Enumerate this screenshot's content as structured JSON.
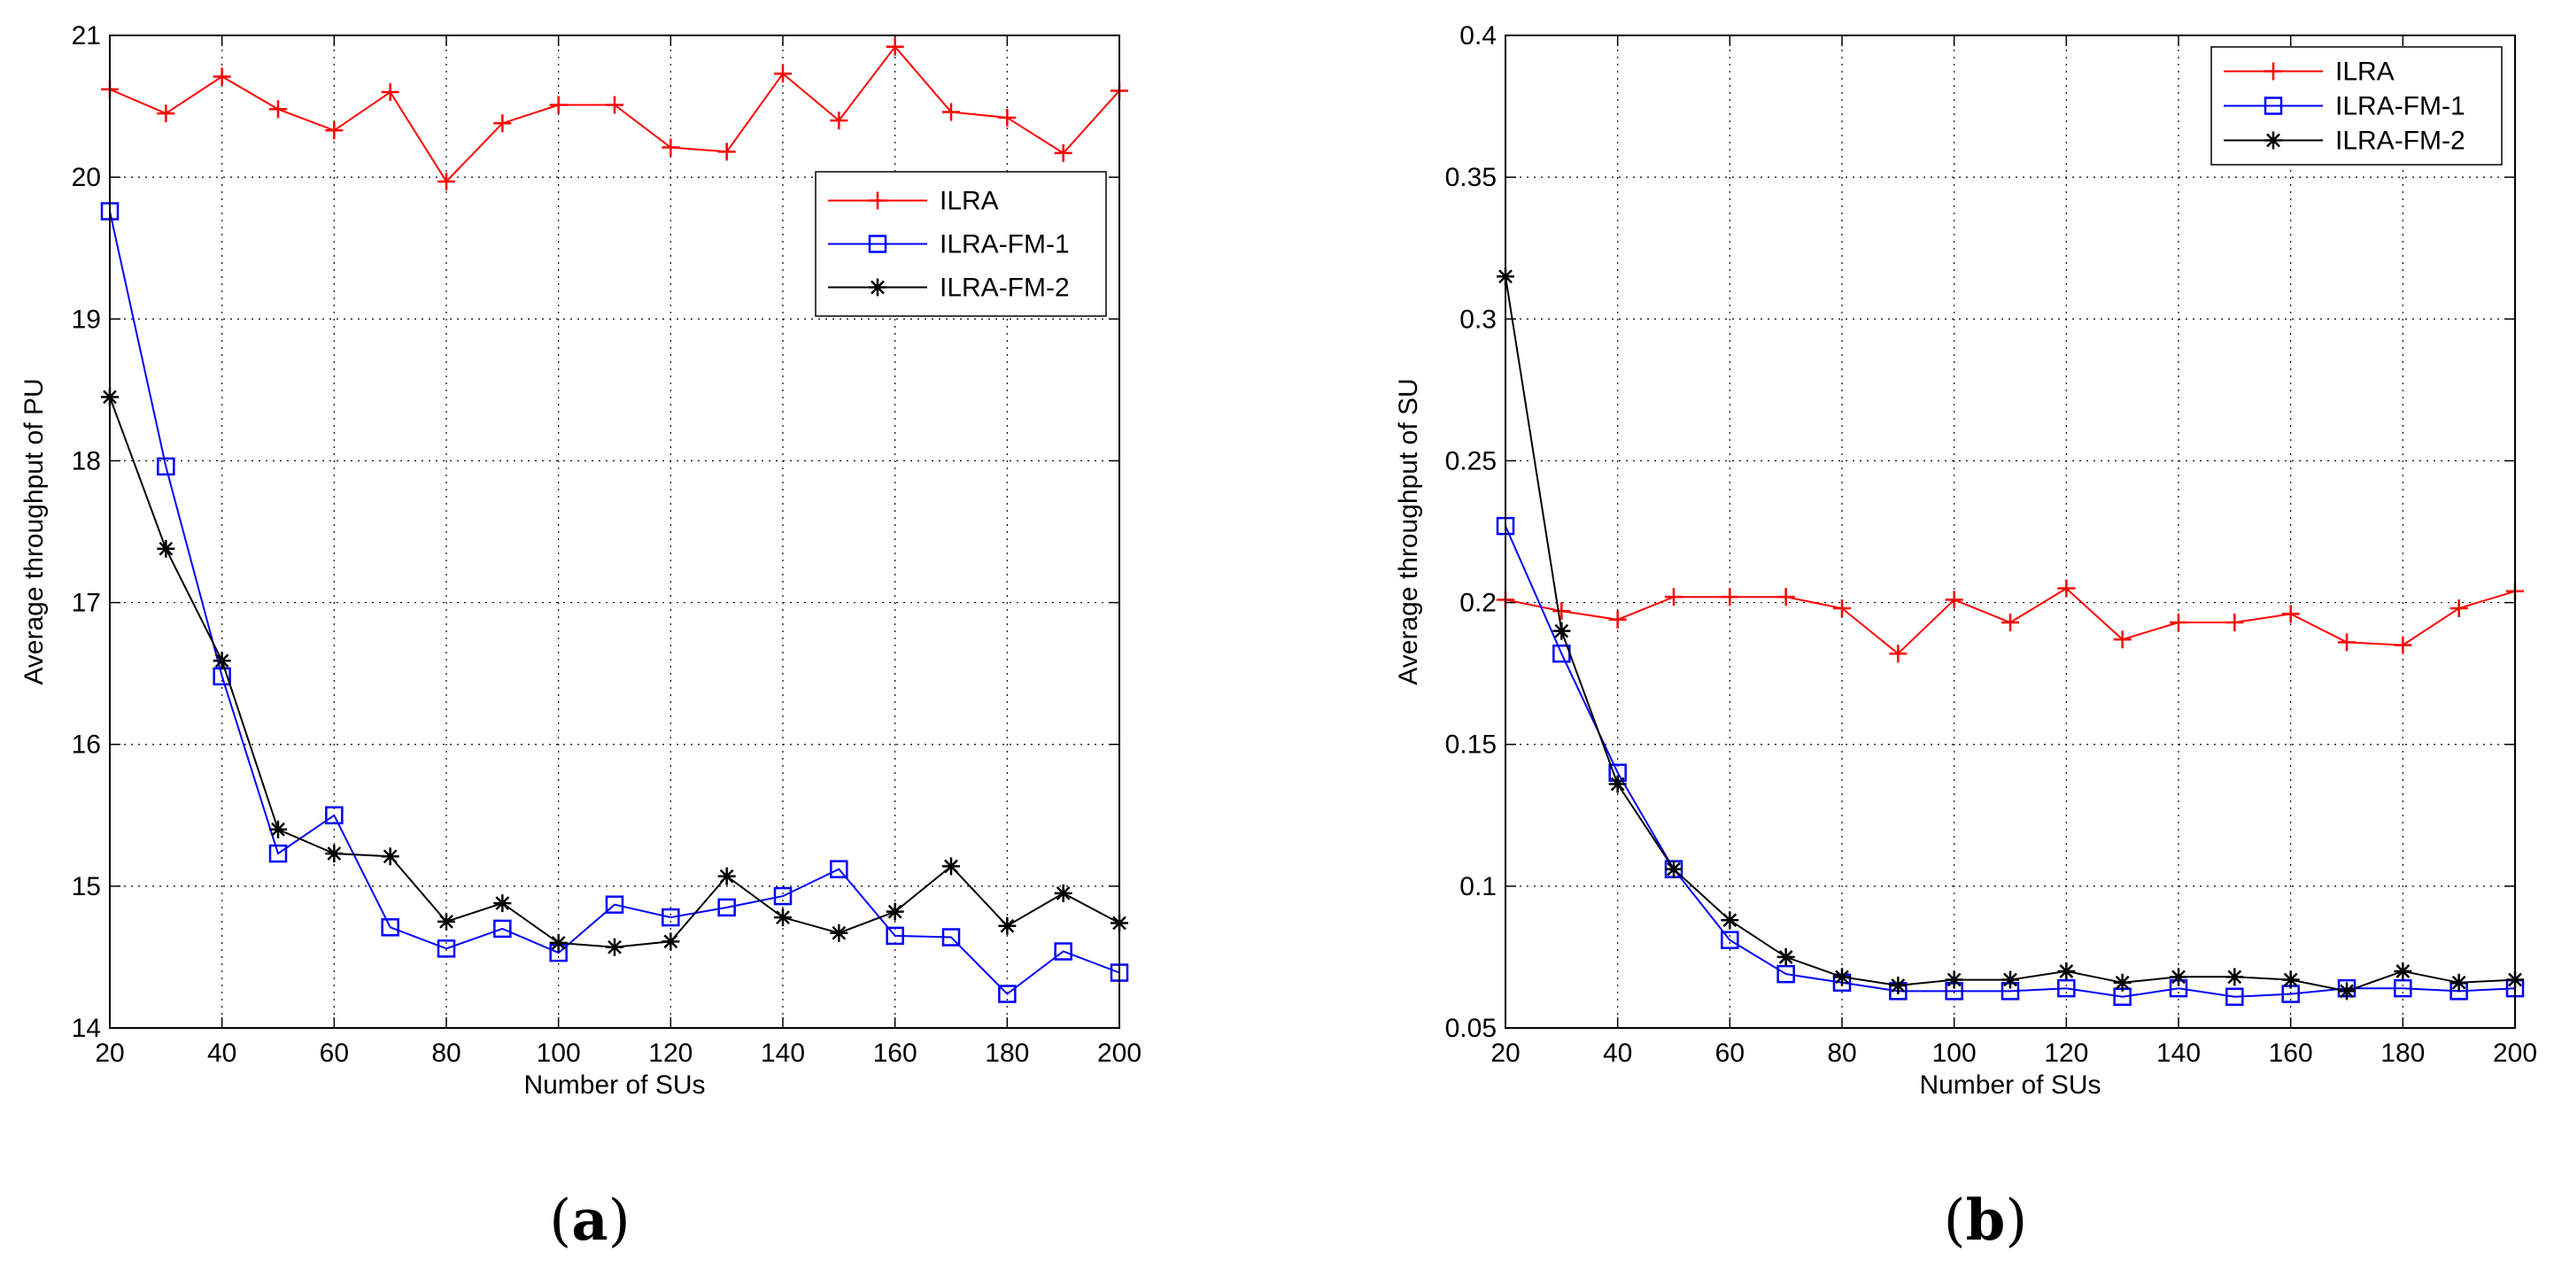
{
  "figure": {
    "panels": [
      {
        "label_open": "(",
        "label_letter": "a",
        "label_close": ")"
      },
      {
        "label_open": "(",
        "label_letter": "b",
        "label_close": ")"
      }
    ]
  },
  "chart_data": [
    {
      "type": "line",
      "title": "",
      "xlabel": "Number of SUs",
      "ylabel": "Average throughput of PU",
      "xlim": [
        20,
        200
      ],
      "ylim": [
        14,
        21
      ],
      "xticks": [
        20,
        40,
        60,
        80,
        100,
        120,
        140,
        160,
        180,
        200
      ],
      "yticks": [
        14,
        15,
        16,
        17,
        18,
        19,
        20,
        21
      ],
      "xtick_labels": [
        "20",
        "40",
        "60",
        "80",
        "100",
        "120",
        "140",
        "160",
        "180",
        "200"
      ],
      "ytick_labels": [
        "14",
        "15",
        "16",
        "17",
        "18",
        "19",
        "20",
        "21"
      ],
      "grid": true,
      "legend_position": "upper-right",
      "x": [
        20,
        30,
        40,
        50,
        60,
        70,
        80,
        90,
        100,
        110,
        120,
        130,
        140,
        150,
        160,
        170,
        180,
        190,
        200
      ],
      "series": [
        {
          "name": "ILRA",
          "color": "#ff0000",
          "marker": "plus",
          "values": [
            20.62,
            20.45,
            20.71,
            20.48,
            20.33,
            20.6,
            19.97,
            20.38,
            20.51,
            20.51,
            20.21,
            20.18,
            20.73,
            20.4,
            20.92,
            20.46,
            20.42,
            20.17,
            20.61
          ]
        },
        {
          "name": "ILRA-FM-1",
          "color": "#0000ff",
          "marker": "square",
          "values": [
            19.76,
            17.96,
            16.48,
            15.23,
            15.5,
            14.71,
            14.56,
            14.7,
            14.53,
            14.87,
            14.78,
            14.85,
            14.93,
            15.12,
            14.65,
            14.64,
            14.24,
            14.54,
            14.39
          ]
        },
        {
          "name": "ILRA-FM-2",
          "color": "#000000",
          "marker": "star",
          "values": [
            18.45,
            17.38,
            16.59,
            15.4,
            15.23,
            15.21,
            14.75,
            14.88,
            14.6,
            14.57,
            14.61,
            15.07,
            14.78,
            14.67,
            14.82,
            15.14,
            14.72,
            14.95,
            14.74
          ]
        }
      ]
    },
    {
      "type": "line",
      "title": "",
      "xlabel": "Number of SUs",
      "ylabel": "Average throughput of SU",
      "xlim": [
        20,
        200
      ],
      "ylim": [
        0.05,
        0.4
      ],
      "xticks": [
        20,
        40,
        60,
        80,
        100,
        120,
        140,
        160,
        180,
        200
      ],
      "yticks": [
        0.05,
        0.1,
        0.15,
        0.2,
        0.25,
        0.3,
        0.35,
        0.4
      ],
      "xtick_labels": [
        "20",
        "40",
        "60",
        "80",
        "100",
        "120",
        "140",
        "160",
        "180",
        "200"
      ],
      "ytick_labels": [
        "0.05",
        "0.1",
        "0.15",
        "0.2",
        "0.25",
        "0.3",
        "0.35",
        "0.4"
      ],
      "grid": true,
      "legend_position": "upper-right",
      "x": [
        20,
        30,
        40,
        50,
        60,
        70,
        80,
        90,
        100,
        110,
        120,
        130,
        140,
        150,
        160,
        170,
        180,
        190,
        200
      ],
      "series": [
        {
          "name": "ILRA",
          "color": "#ff0000",
          "marker": "plus",
          "values": [
            0.201,
            0.197,
            0.194,
            0.202,
            0.202,
            0.202,
            0.198,
            0.182,
            0.201,
            0.193,
            0.205,
            0.187,
            0.193,
            0.193,
            0.196,
            0.186,
            0.185,
            0.198,
            0.204
          ]
        },
        {
          "name": "ILRA-FM-1",
          "color": "#0000ff",
          "marker": "square",
          "values": [
            0.227,
            0.182,
            0.14,
            0.106,
            0.081,
            0.069,
            0.066,
            0.063,
            0.063,
            0.063,
            0.064,
            0.061,
            0.064,
            0.061,
            0.062,
            0.064,
            0.064,
            0.063,
            0.064
          ]
        },
        {
          "name": "ILRA-FM-2",
          "color": "#000000",
          "marker": "star",
          "values": [
            0.315,
            0.19,
            0.136,
            0.106,
            0.088,
            0.075,
            0.068,
            0.065,
            0.067,
            0.067,
            0.07,
            0.066,
            0.068,
            0.068,
            0.067,
            0.063,
            0.07,
            0.066,
            0.067
          ]
        }
      ]
    }
  ]
}
